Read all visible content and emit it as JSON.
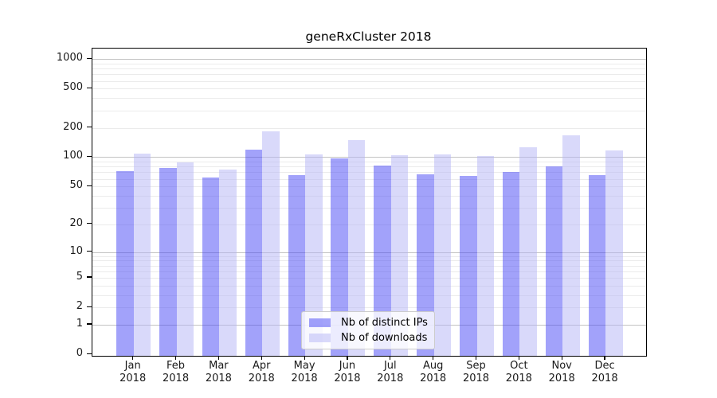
{
  "title": "geneRxCluster 2018",
  "chart_data": {
    "type": "bar",
    "title": "geneRxCluster 2018",
    "categories": [
      "Jan 2018",
      "Feb 2018",
      "Mar 2018",
      "Apr 2018",
      "May 2018",
      "Jun 2018",
      "Jul 2018",
      "Aug 2018",
      "Sep 2018",
      "Oct 2018",
      "Nov 2018",
      "Dec 2018"
    ],
    "series": [
      {
        "name": "Nb of distinct IPs",
        "color": "#a3a3f7",
        "fill": "rgba(70,70,245,0.5)",
        "values": [
          72,
          78,
          62,
          119,
          66,
          97,
          82,
          67,
          64,
          70,
          81,
          66
        ]
      },
      {
        "name": "Nb of downloads",
        "color": "#d8d8fa",
        "fill": "rgba(180,180,245,0.5)",
        "values": [
          108,
          89,
          75,
          183,
          107,
          150,
          104,
          107,
          102,
          126,
          167,
          117
        ]
      }
    ],
    "xlabel": "",
    "ylabel": "",
    "y_scale": "log1p",
    "y_ticks": [
      0,
      1,
      2,
      5,
      10,
      20,
      50,
      100,
      200,
      500,
      1000
    ],
    "ylim": [
      0,
      1280
    ],
    "grid": true,
    "legend_position": "inside-bottom-center",
    "colors": {
      "major_grid": "#c3c3c3",
      "minor_grid": "#ebebeb",
      "spine": "#000000",
      "text": "#1a1a1a"
    }
  }
}
